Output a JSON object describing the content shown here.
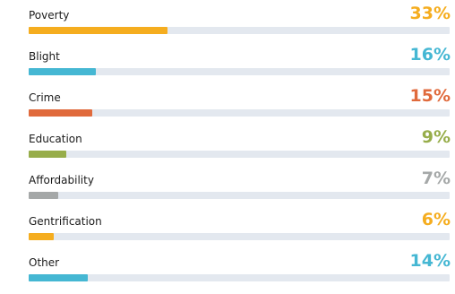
{
  "chart_data": {
    "type": "bar",
    "orientation": "horizontal",
    "categories": [
      "Poverty",
      "Blight",
      "Crime",
      "Education",
      "Affordability",
      "Gentrification",
      "Other"
    ],
    "values": [
      33,
      16,
      15,
      9,
      7,
      6,
      14
    ],
    "value_labels": [
      "33%",
      "16%",
      "15%",
      "9%",
      "7%",
      "6%",
      "14%"
    ],
    "colors": [
      "#f5ad1f",
      "#45b7d3",
      "#e06a3c",
      "#97ad4a",
      "#a5a8a8",
      "#f5ad1f",
      "#45b7d3"
    ],
    "value_label_colors": [
      "#f5ad1f",
      "#45b7d3",
      "#e06a3c",
      "#97ad4a",
      "#a5a8a8",
      "#f5ad1f",
      "#45b7d3"
    ],
    "xlim": [
      0,
      100
    ],
    "track_color": "#e3e8ef",
    "grid": false,
    "legend": "none"
  }
}
